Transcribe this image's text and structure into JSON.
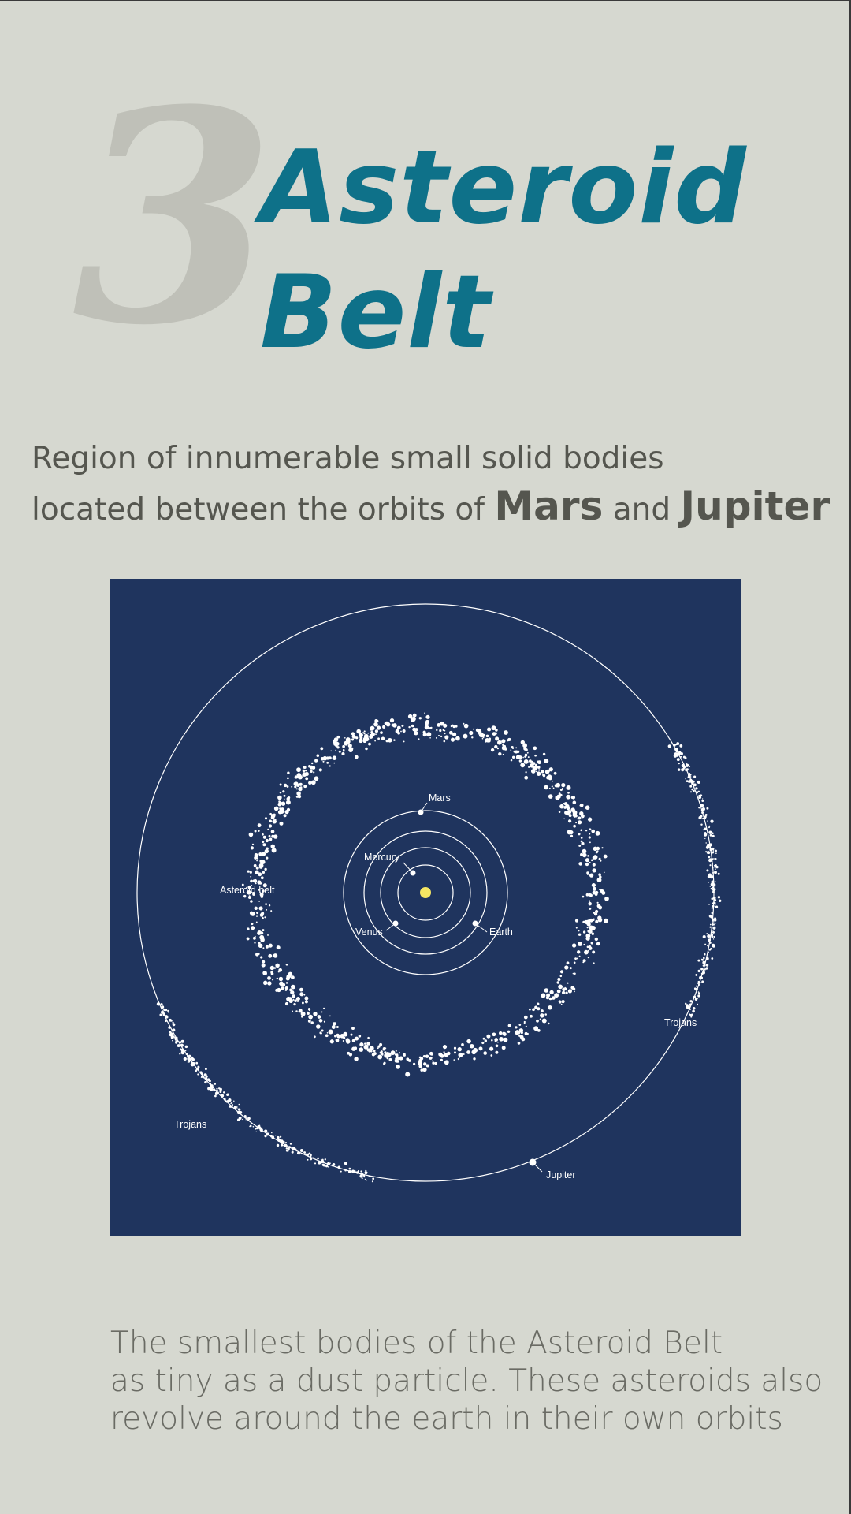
{
  "header": {
    "number": "3",
    "title_line1": "Asteroid",
    "title_line2": "Belt"
  },
  "subtitle": {
    "line1": "Region of innumerable small solid bodies",
    "line2_prefix": "located between the orbits of",
    "mars": "Mars",
    "and": "and",
    "jupiter": "Jupiter"
  },
  "diagram": {
    "labels": {
      "mars": "Mars",
      "mercury": "Mercury",
      "venus": "Venus",
      "earth": "Earth",
      "asteroid_belt": "Asteroid belt",
      "trojans_right": "Trojans",
      "trojans_left": "Trojans",
      "jupiter": "Jupiter"
    },
    "colors": {
      "background": "#1f345e",
      "sun": "#f5e663",
      "orbit": "#ffffff",
      "asteroid": "#ffffff"
    }
  },
  "footer": {
    "line1": "The smallest bodies of the Asteroid Belt",
    "line2": "as tiny as a dust particle. These asteroids also",
    "line3": "revolve around the earth in their own orbits"
  }
}
